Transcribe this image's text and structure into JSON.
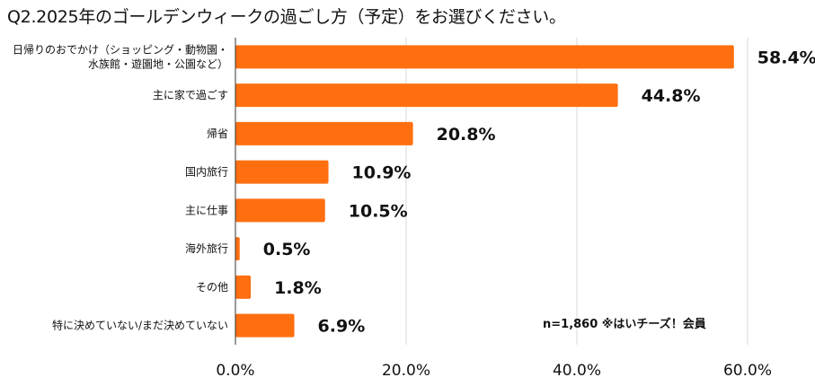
{
  "title": "Q2.2025年のゴールデンウィークの過ごし方（予定）をお選びください。",
  "note": "n=1,860 ※はいチーズ！会員",
  "colors": {
    "bar": "#FF6F10",
    "grid": "#d9d9d9",
    "axis": "#333333",
    "text": "#111111"
  },
  "chart_data": {
    "type": "bar",
    "orientation": "horizontal",
    "categories": [
      [
        "日帰りのおでかけ（ショッピング・動物園・",
        "水族館・遊園地・公園など）"
      ],
      [
        "主に家で過ごす"
      ],
      [
        "帰省"
      ],
      [
        "国内旅行"
      ],
      [
        "主に仕事"
      ],
      [
        "海外旅行"
      ],
      [
        "その他"
      ],
      [
        "特に決めていない/まだ決めていない"
      ]
    ],
    "values": [
      58.4,
      44.8,
      20.8,
      10.9,
      10.5,
      0.5,
      1.8,
      6.9
    ],
    "value_labels": [
      "58.4%",
      "44.8%",
      "20.8%",
      "10.9%",
      "10.5%",
      "0.5%",
      "1.8%",
      "6.9%"
    ],
    "xlim": [
      0,
      60
    ],
    "xticks": [
      0,
      20,
      40,
      60
    ],
    "xtick_labels": [
      "0.0%",
      "20.0%",
      "40.0%",
      "60.0%"
    ],
    "grid": true
  }
}
